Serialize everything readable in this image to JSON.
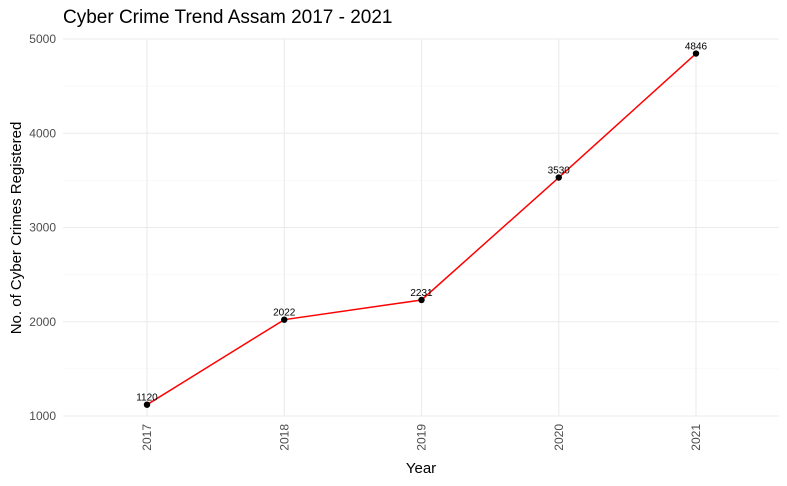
{
  "chart_data": {
    "type": "line",
    "title": "Cyber Crime Trend Assam 2017 - 2021",
    "xlabel": "Year",
    "ylabel": "No. of Cyber Crimes Registered",
    "categories": [
      "2017",
      "2018",
      "2019",
      "2020",
      "2021"
    ],
    "series": [
      {
        "values": [
          1120,
          2022,
          2231,
          3530,
          4846
        ]
      }
    ],
    "ylim": [
      1000,
      5000
    ],
    "yticks": [
      1000,
      2000,
      3000,
      4000,
      5000
    ],
    "grid": true,
    "legend": "none",
    "data_labels": true,
    "x_tick_rotation": -90,
    "colors": {
      "line": "#ff0000",
      "point": "#000000",
      "grid": "#ebebeb"
    }
  }
}
